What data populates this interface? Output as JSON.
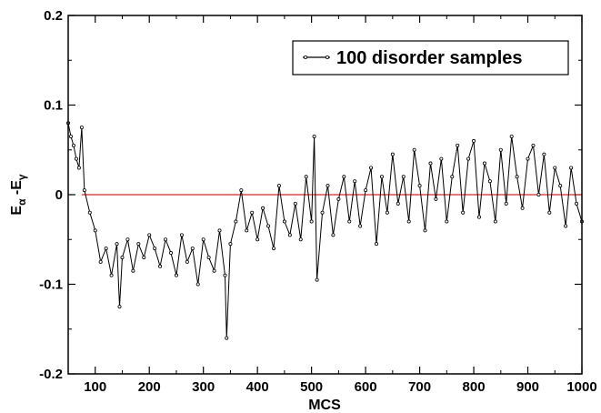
{
  "chart_data": {
    "type": "line",
    "title": "",
    "xlabel": "MCS",
    "ylabel": {
      "main": "E",
      "sub1": "α",
      "mid": " -E",
      "sub2": "γ"
    },
    "xlim": [
      50,
      1000
    ],
    "ylim": [
      -0.2,
      0.2
    ],
    "x_ticks": [
      100,
      200,
      300,
      400,
      500,
      600,
      700,
      800,
      900,
      1000
    ],
    "x_tick_labels": [
      "100",
      "200",
      "300",
      "400",
      "500",
      "600",
      "700",
      "800",
      "900",
      "1000"
    ],
    "y_ticks": [
      -0.2,
      -0.1,
      0,
      0.1,
      0.2
    ],
    "y_tick_labels": [
      "-0.2",
      "-0.1",
      "0",
      "0.1",
      "0.2"
    ],
    "legend": {
      "position": "top-right",
      "entries": [
        "100 disorder samples"
      ]
    },
    "grid": false,
    "reference_line": {
      "y": 0,
      "x_start": 75,
      "x_end": 1000,
      "color": "#d62728"
    },
    "series": [
      {
        "name": "100 disorder samples",
        "color": "#000000",
        "marker": "circle",
        "x": [
          50,
          55,
          60,
          65,
          70,
          75,
          80,
          90,
          100,
          110,
          120,
          130,
          140,
          145,
          150,
          160,
          170,
          180,
          190,
          200,
          210,
          220,
          230,
          240,
          250,
          260,
          270,
          280,
          290,
          300,
          310,
          320,
          330,
          340,
          343,
          350,
          360,
          370,
          380,
          390,
          400,
          410,
          420,
          430,
          440,
          450,
          460,
          470,
          480,
          490,
          500,
          505,
          510,
          520,
          530,
          540,
          550,
          560,
          570,
          580,
          590,
          600,
          610,
          620,
          630,
          640,
          650,
          660,
          670,
          680,
          690,
          700,
          710,
          720,
          730,
          740,
          750,
          760,
          770,
          780,
          790,
          800,
          810,
          820,
          830,
          840,
          850,
          860,
          870,
          880,
          890,
          900,
          910,
          920,
          930,
          940,
          950,
          960,
          970,
          980,
          990,
          1000
        ],
        "y": [
          0.08,
          0.065,
          0.055,
          0.04,
          0.03,
          0.075,
          0.005,
          -0.02,
          -0.04,
          -0.075,
          -0.06,
          -0.09,
          -0.055,
          -0.125,
          -0.07,
          -0.05,
          -0.085,
          -0.055,
          -0.07,
          -0.045,
          -0.06,
          -0.08,
          -0.05,
          -0.065,
          -0.09,
          -0.045,
          -0.075,
          -0.06,
          -0.1,
          -0.05,
          -0.07,
          -0.085,
          -0.04,
          -0.09,
          -0.16,
          -0.055,
          -0.03,
          0.005,
          -0.04,
          -0.02,
          -0.05,
          -0.015,
          -0.035,
          -0.06,
          0.01,
          -0.03,
          -0.045,
          -0.01,
          -0.05,
          0.02,
          -0.03,
          0.065,
          -0.095,
          -0.02,
          0.01,
          -0.045,
          -0.005,
          0.02,
          -0.03,
          0.015,
          -0.035,
          0.005,
          0.03,
          -0.055,
          0.02,
          -0.02,
          0.045,
          -0.01,
          0.02,
          -0.03,
          0.05,
          0.01,
          -0.04,
          0.035,
          -0.005,
          0.04,
          -0.03,
          0.02,
          0.055,
          -0.02,
          0.04,
          0.06,
          -0.025,
          0.035,
          0.015,
          -0.03,
          0.05,
          -0.01,
          0.065,
          0.02,
          -0.015,
          0.04,
          0.055,
          0.0,
          0.045,
          -0.02,
          0.03,
          0.01,
          -0.035,
          0.03,
          -0.01,
          -0.03
        ]
      }
    ]
  }
}
